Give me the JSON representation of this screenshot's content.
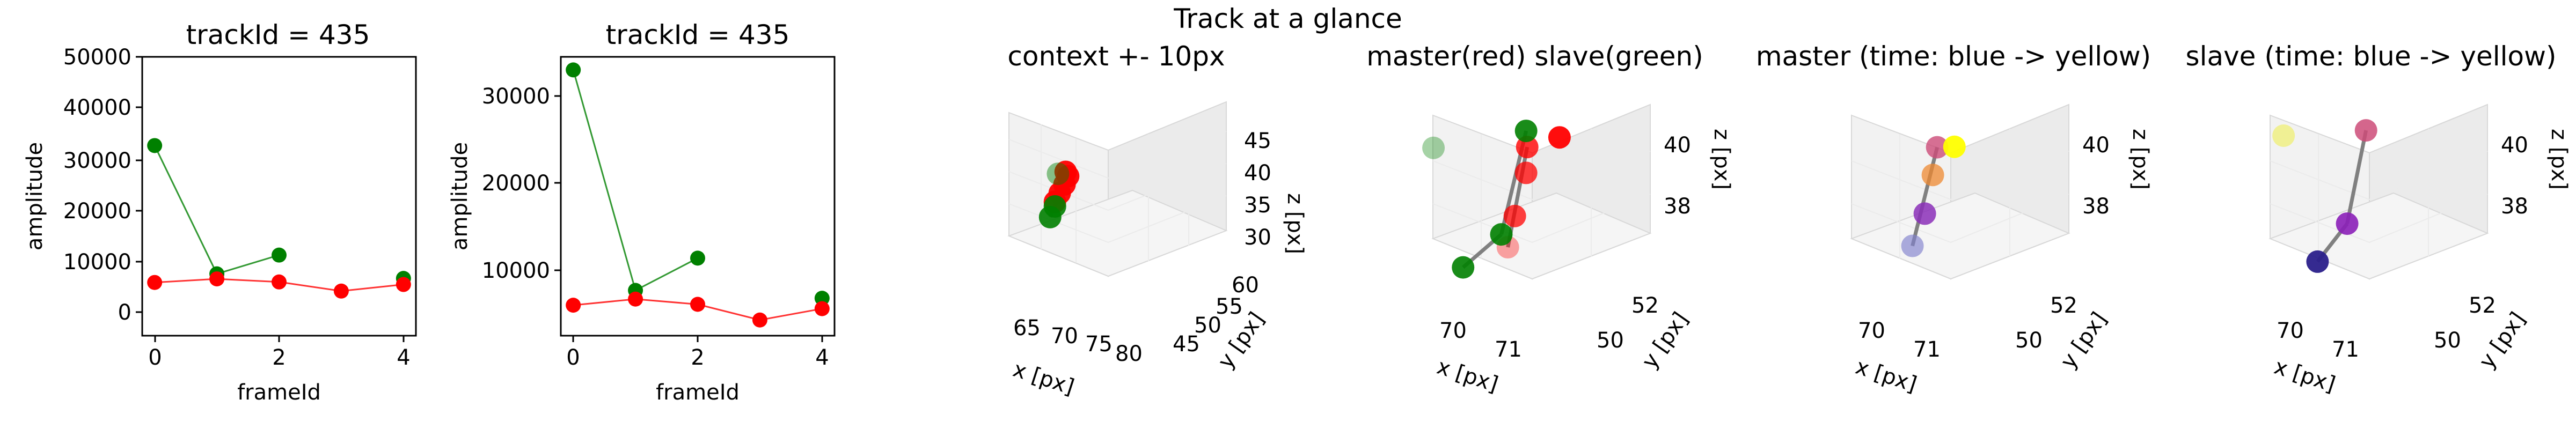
{
  "suptitle": "Track at a glance",
  "panels2d": [
    {
      "title": "trackId = 435",
      "xlabel": "frameId",
      "ylabel": "amplitude",
      "yticks": [
        0,
        10000,
        20000,
        30000,
        40000,
        50000
      ],
      "xticks": [
        0,
        2,
        4
      ]
    },
    {
      "title": "trackId = 435",
      "xlabel": "frameId",
      "ylabel": "amplitude",
      "yticks": [
        10000,
        20000,
        30000
      ],
      "xticks": [
        0,
        2,
        4
      ]
    }
  ],
  "panels3d": [
    {
      "title": "context +- 10px",
      "xlabel": "x [px]",
      "ylabel": "y [px]",
      "zlabel": "z [px]",
      "xticks": [
        "65",
        "70",
        "75",
        "80"
      ],
      "yticks": [
        "45",
        "50",
        "55",
        "60"
      ],
      "zticks": [
        "30",
        "35",
        "40",
        "45"
      ]
    },
    {
      "title": "master(red) slave(green)",
      "xlabel": "x [px]",
      "ylabel": "y [px]",
      "zlabel": "z [px]",
      "xticks": [
        "70",
        "71"
      ],
      "yticks": [
        "50",
        "52"
      ],
      "zticks": [
        "38",
        "40"
      ]
    },
    {
      "title": "master (time: blue -> yellow)",
      "xlabel": "x [px]",
      "ylabel": "y [px]",
      "zlabel": "z [px]",
      "xticks": [
        "70",
        "71"
      ],
      "yticks": [
        "50",
        "52"
      ],
      "zticks": [
        "38",
        "40"
      ]
    },
    {
      "title": "slave (time: blue -> yellow)",
      "xlabel": "x [px]",
      "ylabel": "y [px]",
      "zlabel": "z [px]",
      "xticks": [
        "70",
        "71"
      ],
      "yticks": [
        "50",
        "52"
      ],
      "zticks": [
        "38",
        "40"
      ]
    }
  ],
  "colors": {
    "master": "#ff0000",
    "slave": "#008000",
    "connector": "#808080"
  },
  "chart_data": [
    {
      "type": "line",
      "title": "trackId = 435",
      "xlabel": "frameId",
      "ylabel": "amplitude",
      "xlim": [
        -0.2,
        4.2
      ],
      "ylim": [
        -5000,
        50000
      ],
      "series": [
        {
          "color": "#ff0000",
          "x": [
            0,
            1,
            2,
            3,
            4
          ],
          "y": [
            5500,
            6200,
            5600,
            3800,
            5100
          ]
        },
        {
          "color": "#008000",
          "x": [
            0,
            1,
            2
          ],
          "y": [
            32500,
            7200,
            10900
          ]
        },
        {
          "color": "#008000",
          "x": [
            4
          ],
          "y": [
            6300
          ]
        }
      ]
    },
    {
      "type": "line",
      "title": "trackId = 435",
      "xlabel": "frameId",
      "ylabel": "amplitude",
      "xlim": [
        -0.2,
        4.2
      ],
      "ylim": [
        2000,
        34000
      ],
      "series": [
        {
          "color": "#ff0000",
          "x": [
            0,
            1,
            2,
            3,
            4
          ],
          "y": [
            5500,
            6200,
            5600,
            3800,
            5100
          ]
        },
        {
          "color": "#008000",
          "x": [
            0,
            1,
            2
          ],
          "y": [
            32500,
            7200,
            10900
          ]
        },
        {
          "color": "#008000",
          "x": [
            4
          ],
          "y": [
            6300
          ]
        }
      ]
    },
    {
      "type": "scatter",
      "title": "context +- 10px",
      "xlabel": "x [px]",
      "ylabel": "y [px]",
      "zlabel": "z [px]",
      "xlim": [
        61,
        82
      ],
      "ylim": [
        42,
        63
      ],
      "zlim": [
        28,
        47
      ],
      "points": [
        {
          "x": 70.0,
          "y": 51.0,
          "z": 36.5,
          "color": "#ff0000",
          "alpha": 0.95
        },
        {
          "x": 70.5,
          "y": 51.5,
          "z": 37.5,
          "color": "#ff0000",
          "alpha": 0.95
        },
        {
          "x": 71.0,
          "y": 52.0,
          "z": 38.5,
          "color": "#ff0000",
          "alpha": 0.95
        },
        {
          "x": 71.3,
          "y": 52.5,
          "z": 39.5,
          "color": "#ff0000",
          "alpha": 0.95
        },
        {
          "x": 71.0,
          "y": 52.3,
          "z": 40.3,
          "color": "#ff0000",
          "alpha": 0.95
        },
        {
          "x": 69.5,
          "y": 50.5,
          "z": 34.5,
          "color": "#008000",
          "alpha": 0.9
        },
        {
          "x": 70.0,
          "y": 51.0,
          "z": 35.8,
          "color": "#008000",
          "alpha": 0.9
        },
        {
          "x": 70.2,
          "y": 51.5,
          "z": 40.5,
          "color": "#008000",
          "alpha": 0.45
        }
      ],
      "segments": [
        [
          0,
          4
        ],
        [
          5,
          2
        ]
      ]
    },
    {
      "type": "scatter",
      "title": "master(red) slave(green)",
      "xlabel": "x [px]",
      "ylabel": "y [px]",
      "zlabel": "z [px]",
      "xlim": [
        69.3,
        72.1
      ],
      "ylim": [
        49,
        54
      ],
      "zlim": [
        36.6,
        41.4
      ],
      "points": [
        {
          "x": 71.3,
          "y": 50.8,
          "z": 36.8,
          "color": "#ff0000",
          "alpha": 0.35
        },
        {
          "x": 71.2,
          "y": 51.5,
          "z": 37.8,
          "color": "#ff0000",
          "alpha": 0.75
        },
        {
          "x": 71.2,
          "y": 52.2,
          "z": 39.2,
          "color": "#ff0000",
          "alpha": 0.75
        },
        {
          "x": 71.3,
          "y": 52.0,
          "z": 40.2,
          "color": "#ff0000",
          "alpha": 0.8
        },
        {
          "x": 71.9,
          "y": 52.4,
          "z": 40.1,
          "color": "#ff0000",
          "alpha": 0.95
        },
        {
          "x": 70.0,
          "y": 51.5,
          "z": 36.5,
          "color": "#008000",
          "alpha": 0.9
        },
        {
          "x": 70.7,
          "y": 52.0,
          "z": 37.2,
          "color": "#008000",
          "alpha": 0.9
        },
        {
          "x": 71.2,
          "y": 52.2,
          "z": 40.8,
          "color": "#008000",
          "alpha": 0.9
        },
        {
          "x": 69.5,
          "y": 51.0,
          "z": 41.5,
          "color": "#008000",
          "alpha": 0.35
        }
      ],
      "segments": [
        [
          0,
          3
        ],
        [
          5,
          6
        ],
        [
          6,
          7
        ]
      ]
    },
    {
      "type": "scatter",
      "title": "master (time: blue -> yellow)",
      "xlabel": "x [px]",
      "ylabel": "y [px]",
      "zlabel": "z [px]",
      "xlim": [
        69.3,
        72.1
      ],
      "ylim": [
        49,
        54
      ],
      "zlim": [
        36.6,
        41.4
      ],
      "points": [
        {
          "x": 70.9,
          "y": 51.0,
          "z": 37.0,
          "color": "#8080cc",
          "alpha": 0.65
        },
        {
          "x": 71.0,
          "y": 51.5,
          "z": 38.0,
          "color": "#8b2fb8",
          "alpha": 0.85
        },
        {
          "x": 71.0,
          "y": 52.0,
          "z": 39.3,
          "color": "#ee8830",
          "alpha": 0.75
        },
        {
          "x": 71.1,
          "y": 52.0,
          "z": 40.3,
          "color": "#cc4b78",
          "alpha": 0.8
        },
        {
          "x": 71.5,
          "y": 52.0,
          "z": 40.1,
          "color": "#ffff00",
          "alpha": 0.95
        }
      ],
      "segments": [
        [
          0,
          3
        ]
      ]
    },
    {
      "type": "scatter",
      "title": "slave (time: blue -> yellow)",
      "xlabel": "x [px]",
      "ylabel": "y [px]",
      "zlabel": "z [px]",
      "xlim": [
        69.3,
        72.1
      ],
      "ylim": [
        49,
        54
      ],
      "zlim": [
        36.6,
        41.4
      ],
      "points": [
        {
          "x": 70.4,
          "y": 51.5,
          "z": 36.5,
          "color": "#2a1f8a",
          "alpha": 0.95
        },
        {
          "x": 70.9,
          "y": 52.0,
          "z": 37.5,
          "color": "#8b1fb8",
          "alpha": 0.9
        },
        {
          "x": 71.3,
          "y": 52.1,
          "z": 40.8,
          "color": "#cc4b78",
          "alpha": 0.85
        },
        {
          "x": 69.8,
          "y": 51.0,
          "z": 41.8,
          "color": "#eeee55",
          "alpha": 0.6
        }
      ],
      "segments": [
        [
          0,
          1
        ],
        [
          1,
          2
        ]
      ]
    }
  ]
}
